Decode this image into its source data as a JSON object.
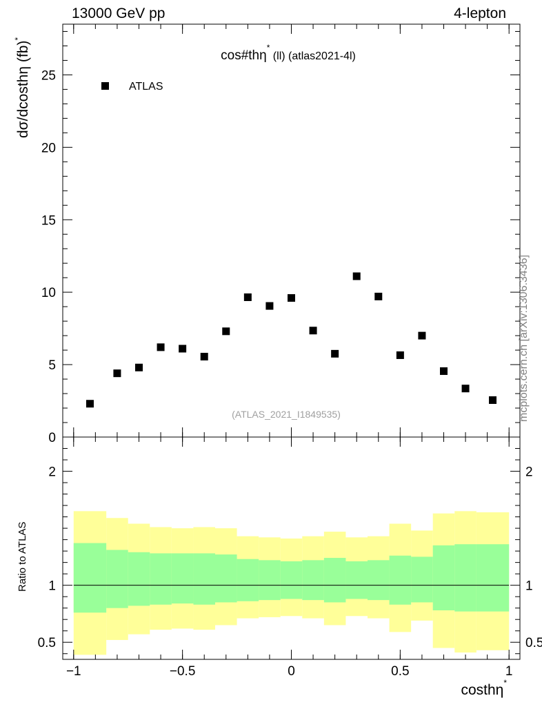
{
  "header": {
    "energy_label": "13000 GeV pp",
    "process_label": "4-lepton"
  },
  "watermark": "mcplots.cern.ch [arXiv:1306.3436]",
  "colors": {
    "data_marker": "#000000",
    "band_inner": "#99ff99",
    "band_outer": "#ffff99",
    "ref_line": "#000000",
    "analysis_label": "#a0a0a0"
  },
  "chart_data": [
    {
      "type": "scatter",
      "title_main": "cos#thη",
      "title_sup": "*",
      "title_tail": " (ll) (atlas2021-4l)",
      "ylabel": "dσ/dcosthη  (fb)",
      "ylabel_sup": "*",
      "ylim": [
        0,
        28.5
      ],
      "xlim": [
        -1.05,
        1.05
      ],
      "yticks": [
        0,
        5,
        10,
        15,
        20,
        25
      ],
      "analysis_label": "(ATLAS_2021_I1849535)",
      "legend": {
        "label": "ATLAS",
        "placement": "top-left"
      },
      "series": [
        {
          "name": "ATLAS",
          "x": [
            -0.925,
            -0.8,
            -0.7,
            -0.6,
            -0.5,
            -0.4,
            -0.3,
            -0.2,
            -0.1,
            0.0,
            0.1,
            0.2,
            0.3,
            0.4,
            0.5,
            0.6,
            0.7,
            0.8,
            0.925
          ],
          "y": [
            2.3,
            4.4,
            4.8,
            6.2,
            6.1,
            5.55,
            7.3,
            9.65,
            9.05,
            9.6,
            7.35,
            5.75,
            11.1,
            9.7,
            5.65,
            7.0,
            4.55,
            3.35,
            2.55
          ]
        }
      ]
    },
    {
      "type": "area",
      "ylabel": "Ratio to ATLAS",
      "xlabel": "costhη",
      "xlabel_sup": "*",
      "xlim": [
        -1.05,
        1.05
      ],
      "ylim": [
        0.35,
        2.3
      ],
      "yticks": [
        0.5,
        1,
        2
      ],
      "xticks": [
        -1,
        -0.5,
        0,
        0.5,
        1
      ],
      "xtick_labels": [
        "−1",
        "−0.5",
        "0",
        "0.5",
        "1"
      ],
      "bin_edges": [
        -1.0,
        -0.85,
        -0.75,
        -0.65,
        -0.55,
        -0.45,
        -0.35,
        -0.25,
        -0.15,
        -0.05,
        0.05,
        0.15,
        0.25,
        0.35,
        0.45,
        0.55,
        0.65,
        0.75,
        0.85,
        1.0
      ],
      "reference": 1,
      "inner_band": {
        "lo": [
          0.76,
          0.8,
          0.82,
          0.83,
          0.84,
          0.83,
          0.85,
          0.86,
          0.87,
          0.88,
          0.87,
          0.85,
          0.88,
          0.87,
          0.83,
          0.85,
          0.78,
          0.77,
          0.77
        ],
        "hi": [
          1.37,
          1.31,
          1.29,
          1.28,
          1.28,
          1.28,
          1.27,
          1.23,
          1.22,
          1.21,
          1.22,
          1.24,
          1.21,
          1.22,
          1.26,
          1.25,
          1.35,
          1.36,
          1.36
        ]
      },
      "outer_band": {
        "lo": [
          0.39,
          0.52,
          0.57,
          0.61,
          0.62,
          0.61,
          0.65,
          0.71,
          0.72,
          0.73,
          0.71,
          0.65,
          0.73,
          0.71,
          0.59,
          0.69,
          0.45,
          0.41,
          0.43
        ],
        "hi": [
          1.65,
          1.59,
          1.54,
          1.51,
          1.5,
          1.51,
          1.5,
          1.43,
          1.42,
          1.41,
          1.43,
          1.47,
          1.42,
          1.43,
          1.54,
          1.48,
          1.63,
          1.65,
          1.64
        ]
      }
    }
  ]
}
